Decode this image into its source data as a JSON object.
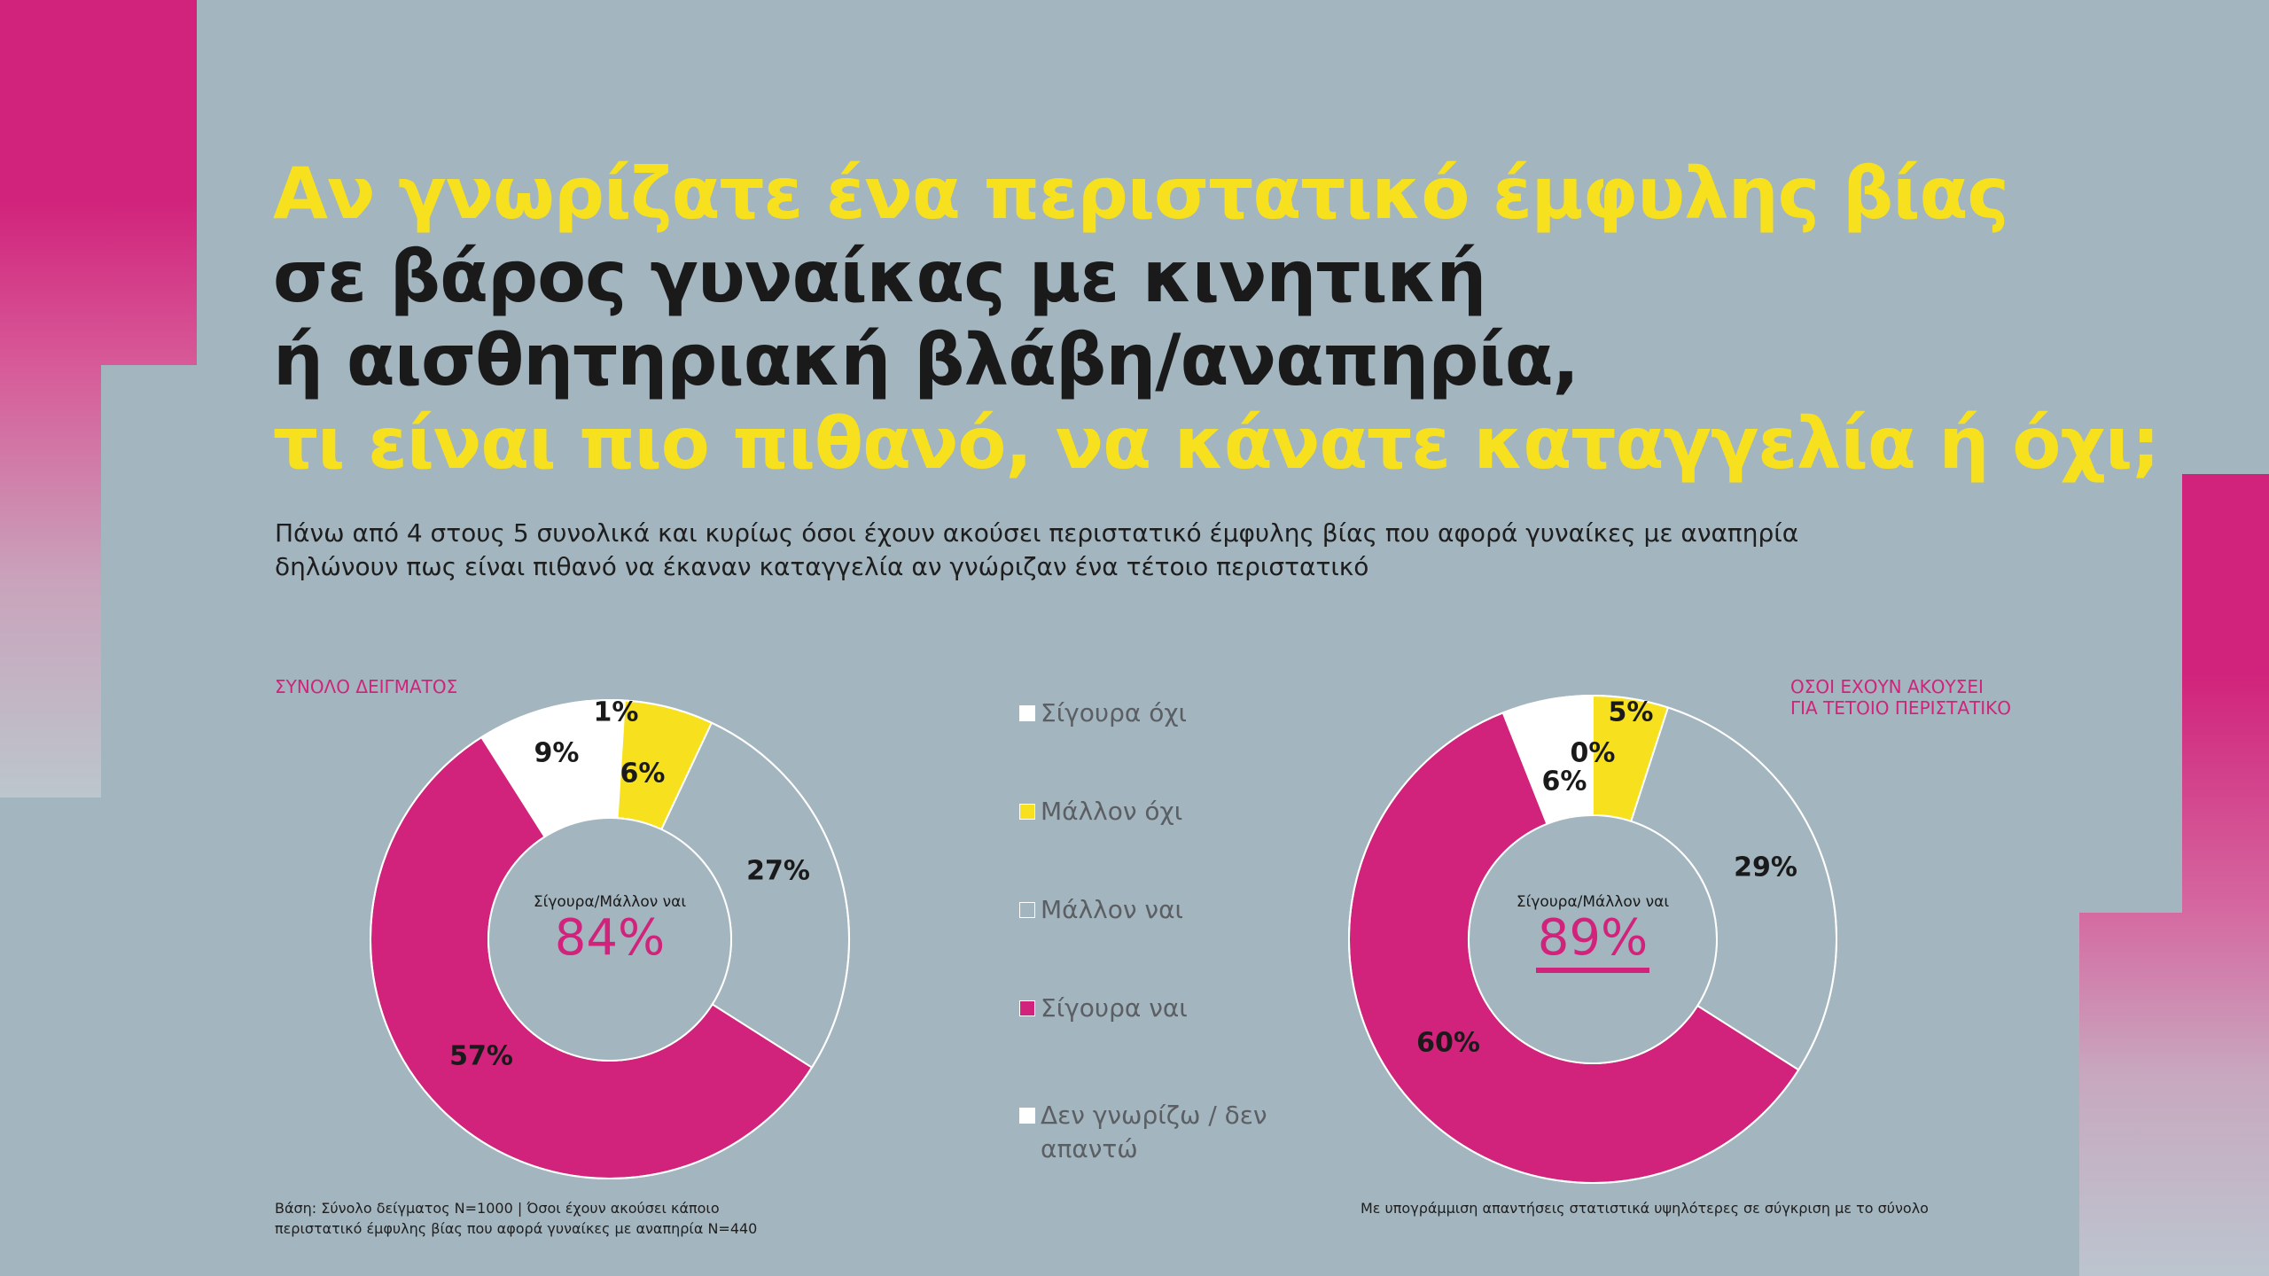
{
  "title_lines": [
    {
      "text": "Αν γνωρίζατε ένα περιστατικό έμφυλης βίας",
      "color": "#f7e11e"
    },
    {
      "text": "σε βάρος γυναίκας με κινητική",
      "color": "#1a1a1a"
    },
    {
      "text": "ή αισθητηριακή βλάβη/αναπηρία,",
      "color": "#1a1a1a"
    },
    {
      "text": "τι είναι πιο πιθανό, να κάνατε καταγγελία ή όχι;",
      "color": "#f7e11e"
    }
  ],
  "subtitle_lines": [
    "Πάνω από 4 στους 5 συνολικά και κυρίως όσοι έχουν ακούσει περιστατικό έμφυλης βίας που αφορά γυναίκες με αναπηρία",
    "δηλώνουν πως είναι πιθανό να έκαναν καταγγελία αν γνώριζαν ένα τέτοιο περιστατικό"
  ],
  "legend": [
    {
      "label": "Σίγουρα όχι",
      "color": "#ffffff"
    },
    {
      "label": "Μάλλον όχι",
      "color": "#f7e11e"
    },
    {
      "label": "Μάλλον ναι",
      "color": "#a3b5bf"
    },
    {
      "label": "Σίγουρα ναι",
      "color": "#d1237b"
    },
    {
      "label": "Δεν γνωρίζω / δεν απαντώ",
      "color": "#ffffff"
    }
  ],
  "chart_data": [
    {
      "type": "pie",
      "variant": "donut",
      "title": "ΣΥΝΟΛΟ ΔΕΙΓΜΑΤΟΣ",
      "title_lines": [
        "ΣΥΝΟΛΟ ΔΕΙΓΜΑΤΟΣ"
      ],
      "categories": [
        "Σίγουρα όχι",
        "Μάλλον όχι",
        "Μάλλον ναι",
        "Σίγουρα ναι",
        "Δεν γνωρίζω / δεν απαντώ"
      ],
      "values": [
        1,
        6,
        27,
        57,
        9
      ],
      "labels": [
        "1%",
        "6%",
        "27%",
        "57%",
        "9%"
      ],
      "center_label": "Σίγουρα/Μάλλον ναι",
      "center_value": "84%",
      "underlined": false
    },
    {
      "type": "pie",
      "variant": "donut",
      "title": "ΟΣΟΙ ΕΧΟΥΝ ΑΚΟΥΣΕΙ ΓΙΑ ΤΕΤΟΙΟ ΠΕΡΙΣΤΑΤΙΚΟ",
      "title_lines": [
        "ΟΣΟΙ ΕΧΟΥΝ ΑΚΟΥΣΕΙ",
        "ΓΙΑ ΤΕΤΟΙΟ ΠΕΡΙΣΤΑΤΙΚΟ"
      ],
      "categories": [
        "Σίγουρα όχι",
        "Μάλλον όχι",
        "Μάλλον ναι",
        "Σίγουρα ναι",
        "Δεν γνωρίζω / δεν απαντώ"
      ],
      "values": [
        0,
        5,
        29,
        60,
        6
      ],
      "labels": [
        "0%",
        "5%",
        "29%",
        "60%",
        "6%"
      ],
      "center_label": "Σίγουρα/Μάλλον ναι",
      "center_value": "89%",
      "underlined": true
    }
  ],
  "footnote_left": [
    "Βάση: Σύνολο δείγματος Ν=1000 | Όσοι έχουν ακούσει κάποιο",
    "περιστατικό έμφυλης βίας που αφορά γυναίκες με αναπηρία  Ν=440"
  ],
  "footnote_right": "Με υπογράμμιση απαντήσεις στατιστικά υψηλότερες σε σύγκριση με το σύνολο",
  "colors": {
    "background": "#a3b5bf",
    "accent_magenta": "#d1237b",
    "accent_yellow": "#f7e11e"
  }
}
